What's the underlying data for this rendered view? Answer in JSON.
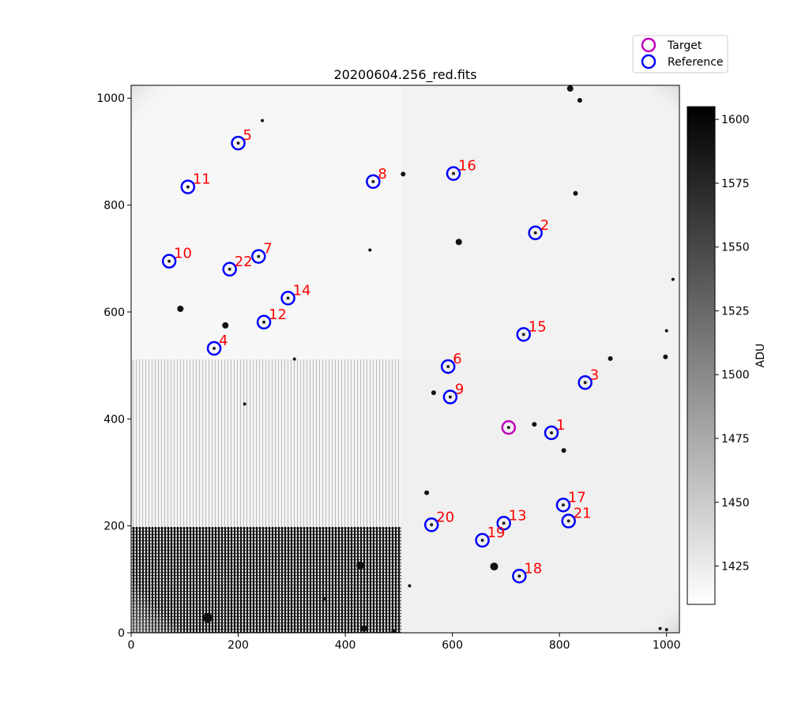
{
  "chart_data": {
    "type": "scatter",
    "title": "20200604.256_red.fits",
    "xlabel": "",
    "ylabel": "",
    "xlim": [
      0,
      1024
    ],
    "ylim": [
      0,
      1024
    ],
    "x_ticks": [
      0,
      200,
      400,
      600,
      800,
      1000
    ],
    "y_ticks": [
      0,
      200,
      400,
      600,
      800,
      1000
    ],
    "legend": {
      "placement": "top-right, outside plot",
      "entries": [
        {
          "label": "Target",
          "color": "#bf00bf"
        },
        {
          "label": "Reference",
          "color": "#0000ff"
        }
      ]
    },
    "colorbar": {
      "label": "ADU",
      "range": [
        1410,
        1605
      ],
      "ticks": [
        1425,
        1450,
        1475,
        1500,
        1525,
        1550,
        1575,
        1600
      ],
      "colormap": "gray_r"
    },
    "target": {
      "x": 705,
      "y": 384
    },
    "series": [
      {
        "name": "Reference",
        "points": [
          {
            "label": "1",
            "x": 785,
            "y": 374
          },
          {
            "label": "2",
            "x": 755,
            "y": 748
          },
          {
            "label": "3",
            "x": 848,
            "y": 468
          },
          {
            "label": "4",
            "x": 155,
            "y": 532
          },
          {
            "label": "5",
            "x": 200,
            "y": 916
          },
          {
            "label": "6",
            "x": 592,
            "y": 498
          },
          {
            "label": "7",
            "x": 238,
            "y": 704
          },
          {
            "label": "8",
            "x": 452,
            "y": 844
          },
          {
            "label": "9",
            "x": 596,
            "y": 441
          },
          {
            "label": "10",
            "x": 71,
            "y": 695
          },
          {
            "label": "11",
            "x": 106,
            "y": 834
          },
          {
            "label": "12",
            "x": 248,
            "y": 581
          },
          {
            "label": "13",
            "x": 696,
            "y": 205
          },
          {
            "label": "14",
            "x": 293,
            "y": 626
          },
          {
            "label": "15",
            "x": 733,
            "y": 558
          },
          {
            "label": "16",
            "x": 602,
            "y": 859
          },
          {
            "label": "17",
            "x": 807,
            "y": 239
          },
          {
            "label": "18",
            "x": 725,
            "y": 106
          },
          {
            "label": "19",
            "x": 656,
            "y": 173
          },
          {
            "label": "20",
            "x": 561,
            "y": 202
          },
          {
            "label": "21",
            "x": 817,
            "y": 209
          },
          {
            "label": "22",
            "x": 184,
            "y": 680
          }
        ]
      }
    ],
    "background_stars": [
      {
        "x": 143,
        "y": 28,
        "r": 6
      },
      {
        "x": 428,
        "y": 126,
        "r": 5
      },
      {
        "x": 678,
        "y": 124,
        "r": 5
      },
      {
        "x": 435,
        "y": 8,
        "r": 4
      },
      {
        "x": 490,
        "y": 2,
        "r": 3
      },
      {
        "x": 92,
        "y": 606,
        "r": 4
      },
      {
        "x": 176,
        "y": 575,
        "r": 4
      },
      {
        "x": 612,
        "y": 731,
        "r": 4
      },
      {
        "x": 565,
        "y": 449,
        "r": 3
      },
      {
        "x": 552,
        "y": 262,
        "r": 3
      },
      {
        "x": 753,
        "y": 390,
        "r": 3
      },
      {
        "x": 808,
        "y": 341,
        "r": 3
      },
      {
        "x": 895,
        "y": 513,
        "r": 3
      },
      {
        "x": 998,
        "y": 516,
        "r": 3
      },
      {
        "x": 830,
        "y": 822,
        "r": 3
      },
      {
        "x": 820,
        "y": 1018,
        "r": 4
      },
      {
        "x": 838,
        "y": 996,
        "r": 3
      },
      {
        "x": 508,
        "y": 858,
        "r": 3
      },
      {
        "x": 245,
        "y": 958,
        "r": 2
      },
      {
        "x": 1012,
        "y": 661,
        "r": 2
      },
      {
        "x": 1000,
        "y": 565,
        "r": 2
      },
      {
        "x": 446,
        "y": 716,
        "r": 2
      },
      {
        "x": 212,
        "y": 428,
        "r": 2
      },
      {
        "x": 305,
        "y": 512,
        "r": 2
      },
      {
        "x": 360,
        "y": 64,
        "r": 2
      },
      {
        "x": 520,
        "y": 88,
        "r": 2
      },
      {
        "x": 988,
        "y": 8,
        "r": 2
      },
      {
        "x": 1000,
        "y": 6,
        "r": 2
      }
    ]
  }
}
